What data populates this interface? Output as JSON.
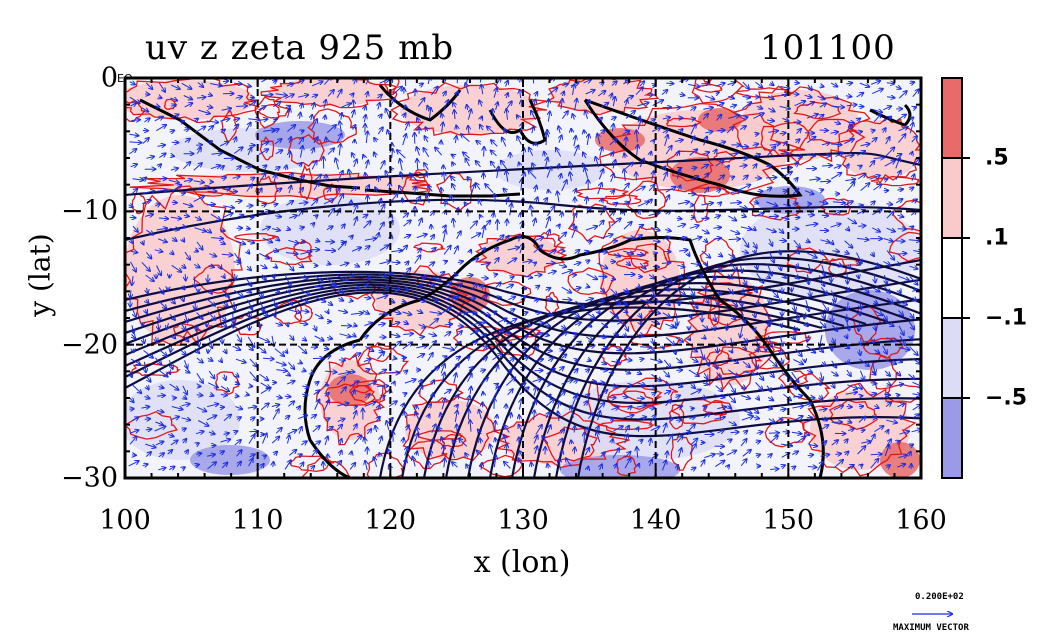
{
  "plot": {
    "title": "uv z zeta 925 mb",
    "time_label": "101100",
    "xlabel": "x (lon)",
    "ylabel": "y (lat)",
    "equator_mark": "EQ",
    "x_range": [
      100,
      160
    ],
    "y_range": [
      -30,
      0
    ],
    "x_ticks": [
      {
        "value": 100,
        "label": "100"
      },
      {
        "value": 110,
        "label": "110"
      },
      {
        "value": 120,
        "label": "120"
      },
      {
        "value": 130,
        "label": "130"
      },
      {
        "value": 140,
        "label": "140"
      },
      {
        "value": 150,
        "label": "150"
      },
      {
        "value": 160,
        "label": "160"
      }
    ],
    "y_ticks": [
      {
        "value": 0,
        "label": "0"
      },
      {
        "value": -10,
        "label": "−10"
      },
      {
        "value": -20,
        "label": "−20"
      },
      {
        "value": -30,
        "label": "−30"
      }
    ]
  },
  "colorbar": {
    "labels": [
      ".5",
      ".1",
      "−.1",
      "−.5"
    ],
    "colors": {
      "strong_pos": "#e86a6a",
      "weak_pos": "#f9caca",
      "neutral": "#ffffff",
      "weak_neg": "#dcdcf6",
      "strong_neg": "#9a9ae6"
    }
  },
  "vector_key": {
    "value": "0.200E+02",
    "label": "MAXIMUM VECTOR"
  },
  "colors": {
    "vector": "#1a2ee0",
    "contour_red": "#e01818",
    "geopotential": "#0d0d40"
  }
}
